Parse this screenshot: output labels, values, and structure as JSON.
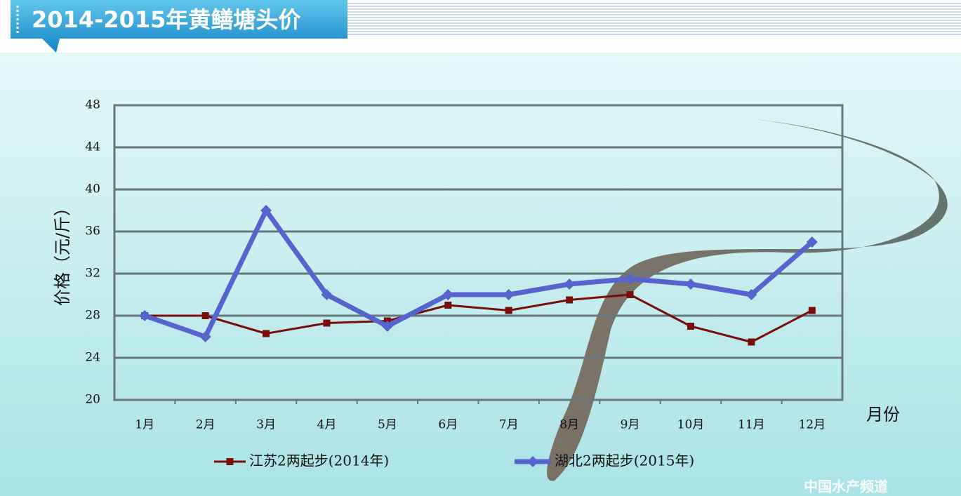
{
  "chart_data": {
    "type": "line",
    "title": "2014-2015年黄鳝塘头价",
    "ylabel": "价格（元/斤）",
    "xlabel": "月份",
    "categories": [
      "1月",
      "2月",
      "3月",
      "4月",
      "5月",
      "6月",
      "7月",
      "8月",
      "9月",
      "10月",
      "11月",
      "12月"
    ],
    "series": [
      {
        "name": "江苏2两起步(2014年)",
        "color": "#7a0c0c",
        "values": [
          28,
          28,
          26.3,
          27.3,
          27.5,
          29,
          28.5,
          29.5,
          30,
          27,
          25.5,
          28.5
        ]
      },
      {
        "name": "湖北2两起步(2015年)",
        "color": "#5664cf",
        "values": [
          28,
          26,
          38,
          30,
          27,
          30,
          30,
          31,
          31.5,
          31,
          30,
          35
        ]
      }
    ],
    "ylim": [
      20,
      48
    ],
    "yticks": [
      20,
      24,
      28,
      32,
      36,
      40,
      44,
      48
    ],
    "grid": true
  },
  "watermark": "中国水产频道"
}
